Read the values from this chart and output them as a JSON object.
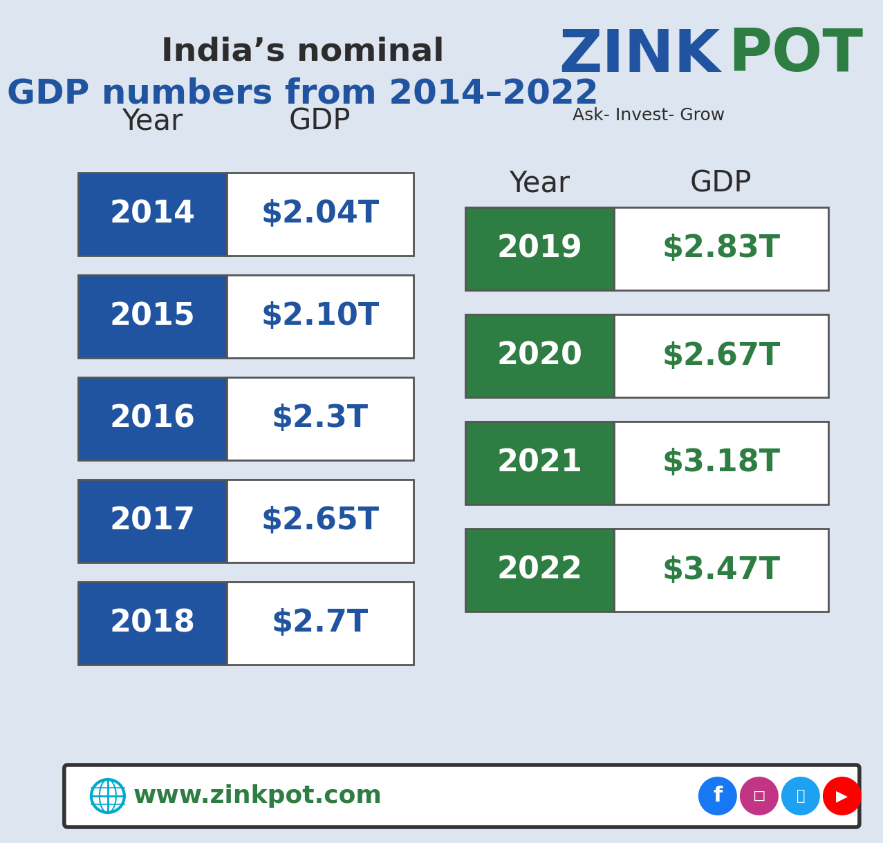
{
  "title_line1": "India’s nominal",
  "title_line2": "GDP numbers from 2014–2022",
  "bg_color": "#dde5f0",
  "blue_color": "#2154a0",
  "green_color": "#2e7d42",
  "white_color": "#ffffff",
  "dark_text": "#2c2c2c",
  "left_years": [
    "2014",
    "2015",
    "2016",
    "2017",
    "2018"
  ],
  "left_gdp": [
    "$2.04T",
    "$2.10T",
    "$2.3T",
    "$2.65T",
    "$2.7T"
  ],
  "right_years": [
    "2019",
    "2020",
    "2021",
    "2022"
  ],
  "right_gdp": [
    "$2.83T",
    "$2.67T",
    "$3.18T",
    "$3.47T"
  ],
  "footer_text": "www.zinkpot.com",
  "logo_blue": "#2154a0",
  "logo_green": "#2e7d42",
  "subtitle_text": "Ask- Invest- Grow",
  "border_color": "#555555"
}
